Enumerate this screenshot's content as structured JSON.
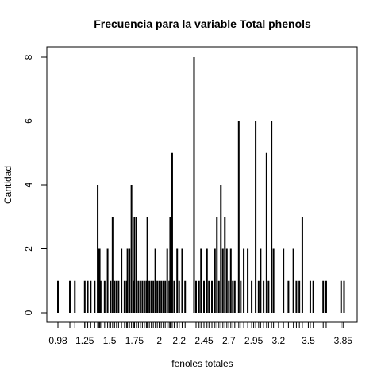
{
  "chart_data": {
    "type": "bar",
    "title": "Frecuencia para la variable Total phenols",
    "xlabel": "fenoles totales",
    "ylabel": "Cantidad",
    "ylim": [
      0,
      8
    ],
    "xlim": [
      0.98,
      3.88
    ],
    "y_ticks": [
      "0",
      "2",
      "4",
      "6",
      "8"
    ],
    "x_ticks": [
      "0.98",
      "1.25",
      "1.5",
      "1.75",
      "2",
      "2.2",
      "2.45",
      "2.7",
      "2.95",
      "3.2",
      "3.5",
      "3.85"
    ],
    "bars": [
      {
        "x": 0.98,
        "value": 1
      },
      {
        "x": 1.1,
        "value": 1
      },
      {
        "x": 1.15,
        "value": 1
      },
      {
        "x": 1.25,
        "value": 1
      },
      {
        "x": 1.28,
        "value": 1
      },
      {
        "x": 1.31,
        "value": 1
      },
      {
        "x": 1.35,
        "value": 1
      },
      {
        "x": 1.38,
        "value": 4
      },
      {
        "x": 1.39,
        "value": 2
      },
      {
        "x": 1.4,
        "value": 2
      },
      {
        "x": 1.41,
        "value": 1
      },
      {
        "x": 1.45,
        "value": 1
      },
      {
        "x": 1.48,
        "value": 2
      },
      {
        "x": 1.51,
        "value": 1
      },
      {
        "x": 1.53,
        "value": 3
      },
      {
        "x": 1.55,
        "value": 1
      },
      {
        "x": 1.57,
        "value": 1
      },
      {
        "x": 1.59,
        "value": 1
      },
      {
        "x": 1.62,
        "value": 2
      },
      {
        "x": 1.65,
        "value": 1
      },
      {
        "x": 1.67,
        "value": 1
      },
      {
        "x": 1.68,
        "value": 2
      },
      {
        "x": 1.7,
        "value": 2
      },
      {
        "x": 1.72,
        "value": 4
      },
      {
        "x": 1.74,
        "value": 1
      },
      {
        "x": 1.75,
        "value": 3
      },
      {
        "x": 1.77,
        "value": 3
      },
      {
        "x": 1.79,
        "value": 1
      },
      {
        "x": 1.81,
        "value": 1
      },
      {
        "x": 1.83,
        "value": 1
      },
      {
        "x": 1.85,
        "value": 1
      },
      {
        "x": 1.87,
        "value": 1
      },
      {
        "x": 1.88,
        "value": 3
      },
      {
        "x": 1.9,
        "value": 1
      },
      {
        "x": 1.92,
        "value": 1
      },
      {
        "x": 1.94,
        "value": 1
      },
      {
        "x": 1.96,
        "value": 2
      },
      {
        "x": 1.98,
        "value": 1
      },
      {
        "x": 2.0,
        "value": 1
      },
      {
        "x": 2.02,
        "value": 1
      },
      {
        "x": 2.04,
        "value": 1
      },
      {
        "x": 2.06,
        "value": 1
      },
      {
        "x": 2.08,
        "value": 2
      },
      {
        "x": 2.1,
        "value": 1
      },
      {
        "x": 2.11,
        "value": 3
      },
      {
        "x": 2.13,
        "value": 5
      },
      {
        "x": 2.15,
        "value": 1
      },
      {
        "x": 2.18,
        "value": 2
      },
      {
        "x": 2.2,
        "value": 1
      },
      {
        "x": 2.23,
        "value": 2
      },
      {
        "x": 2.26,
        "value": 1
      },
      {
        "x": 2.35,
        "value": 8
      },
      {
        "x": 2.37,
        "value": 1
      },
      {
        "x": 2.4,
        "value": 1
      },
      {
        "x": 2.42,
        "value": 2
      },
      {
        "x": 2.45,
        "value": 1
      },
      {
        "x": 2.48,
        "value": 2
      },
      {
        "x": 2.5,
        "value": 1
      },
      {
        "x": 2.53,
        "value": 1
      },
      {
        "x": 2.56,
        "value": 2
      },
      {
        "x": 2.58,
        "value": 3
      },
      {
        "x": 2.6,
        "value": 1
      },
      {
        "x": 2.62,
        "value": 4
      },
      {
        "x": 2.64,
        "value": 2
      },
      {
        "x": 2.66,
        "value": 3
      },
      {
        "x": 2.68,
        "value": 2
      },
      {
        "x": 2.7,
        "value": 1
      },
      {
        "x": 2.72,
        "value": 2
      },
      {
        "x": 2.74,
        "value": 1
      },
      {
        "x": 2.76,
        "value": 1
      },
      {
        "x": 2.8,
        "value": 6
      },
      {
        "x": 2.82,
        "value": 1
      },
      {
        "x": 2.85,
        "value": 2
      },
      {
        "x": 2.89,
        "value": 2
      },
      {
        "x": 2.93,
        "value": 1
      },
      {
        "x": 2.97,
        "value": 6
      },
      {
        "x": 3.0,
        "value": 1
      },
      {
        "x": 3.02,
        "value": 2
      },
      {
        "x": 3.05,
        "value": 1
      },
      {
        "x": 3.08,
        "value": 5
      },
      {
        "x": 3.1,
        "value": 1
      },
      {
        "x": 3.13,
        "value": 6
      },
      {
        "x": 3.15,
        "value": 2
      },
      {
        "x": 3.25,
        "value": 2
      },
      {
        "x": 3.3,
        "value": 1
      },
      {
        "x": 3.35,
        "value": 2
      },
      {
        "x": 3.38,
        "value": 1
      },
      {
        "x": 3.41,
        "value": 1
      },
      {
        "x": 3.44,
        "value": 3
      },
      {
        "x": 3.52,
        "value": 1
      },
      {
        "x": 3.55,
        "value": 1
      },
      {
        "x": 3.65,
        "value": 1
      },
      {
        "x": 3.68,
        "value": 1
      },
      {
        "x": 3.83,
        "value": 1
      },
      {
        "x": 3.86,
        "value": 1
      }
    ],
    "colors": {
      "bars": "#000000",
      "axes": "#000000",
      "background": "#ffffff"
    }
  }
}
